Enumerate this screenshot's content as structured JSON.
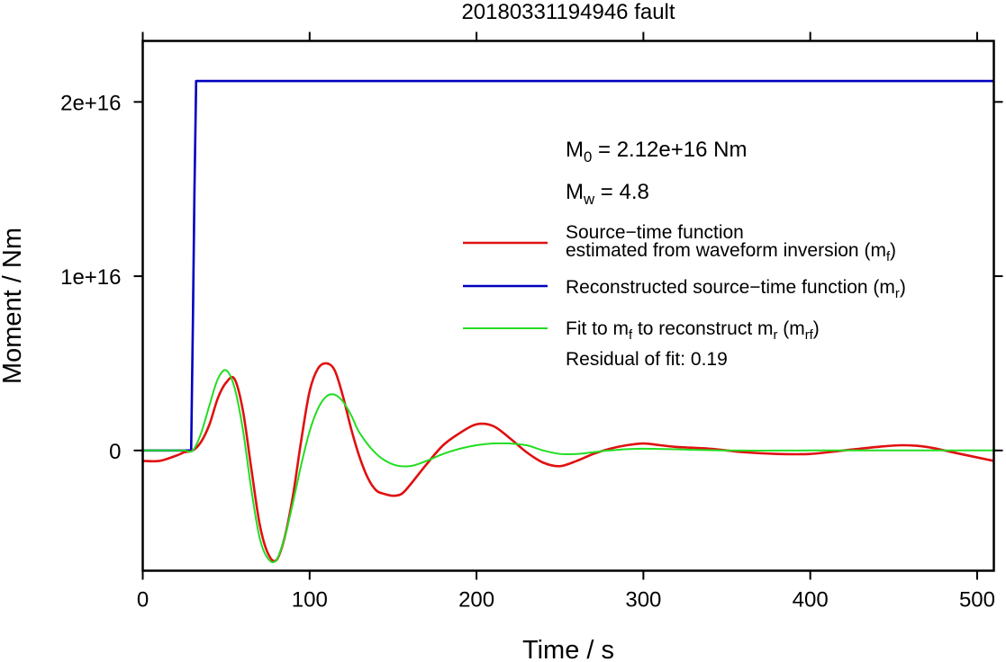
{
  "chart_data": {
    "type": "line",
    "title": "20180331194946 fault",
    "xlabel": "Time / s",
    "ylabel": "Moment / Nm",
    "xlim": [
      0,
      510
    ],
    "ylim": [
      -6900000000000000.0,
      2.35e+16
    ],
    "x_ticks": [
      0,
      100,
      200,
      300,
      400,
      500
    ],
    "x_tick_labels": [
      "0",
      "100",
      "200",
      "300",
      "400",
      "500"
    ],
    "y_ticks": [
      0,
      1e+16,
      2e+16
    ],
    "y_tick_labels": [
      "0",
      "1e+16",
      "2e+16"
    ],
    "grid": false,
    "legend_position": "right",
    "annotations": {
      "m0_label": "M",
      "m0_sub": "0",
      "m0_value": " = 2.12e+16 Nm",
      "mw_label": "M",
      "mw_sub": "w",
      "mw_value": " = 4.8",
      "residual": "Residual of fit: 0.19"
    },
    "legend": [
      {
        "line1": "Source−time function",
        "line2": "estimated from waveform inversion (m",
        "sub": "f",
        "tail": ")",
        "color": "#e01010"
      },
      {
        "line1": "Reconstructed source−time function (m",
        "sub": "r",
        "tail": ")",
        "color": "#0000c0"
      },
      {
        "pre": "Fit to m",
        "sub1": "f",
        "mid": " to reconstruct m",
        "sub2": "r",
        "mid2": " (m",
        "sub3": "rf",
        "tail": ")",
        "color": "#22dd22"
      }
    ],
    "series": [
      {
        "name": "Source−time function estimated from waveform inversion (mf)",
        "color": "#e01010",
        "x": [
          0,
          10,
          20,
          25,
          30,
          35,
          40,
          45,
          50,
          55,
          60,
          65,
          70,
          75,
          80,
          85,
          90,
          95,
          100,
          105,
          110,
          115,
          120,
          125,
          130,
          135,
          140,
          145,
          150,
          155,
          160,
          170,
          180,
          190,
          200,
          210,
          220,
          230,
          240,
          250,
          260,
          270,
          280,
          290,
          300,
          310,
          320,
          340,
          360,
          380,
          400,
          420,
          440,
          455,
          470,
          490,
          510
        ],
        "y": [
          -600000000000000.0,
          -600000000000000.0,
          -300000000000000.0,
          -100000000000000.0,
          0,
          500000000000000.0,
          1500000000000000.0,
          3000000000000000.0,
          3900000000000000.0,
          4100000000000000.0,
          2300000000000000.0,
          -1000000000000000.0,
          -4200000000000000.0,
          -5900000000000000.0,
          -6300000000000000.0,
          -5000000000000000.0,
          -2600000000000000.0,
          600000000000000.0,
          3400000000000000.0,
          4700000000000000.0,
          5000000000000000.0,
          4600000000000000.0,
          3100000000000000.0,
          1200000000000000.0,
          -400000000000000.0,
          -1600000000000000.0,
          -2300000000000000.0,
          -2500000000000000.0,
          -2600000000000000.0,
          -2500000000000000.0,
          -2000000000000000.0,
          -800000000000000.0,
          300000000000000.0,
          1000000000000000.0,
          1500000000000000.0,
          1400000000000000.0,
          700000000000000.0,
          -100000000000000.0,
          -700000000000000.0,
          -900000000000000.0,
          -600000000000000.0,
          -200000000000000.0,
          100000000000000.0,
          300000000000000.0,
          400000000000000.0,
          300000000000000.0,
          200000000000000.0,
          100000000000000.0,
          -100000000000000.0,
          -200000000000000.0,
          -200000000000000.0,
          0,
          200000000000000.0,
          300000000000000.0,
          200000000000000.0,
          -200000000000000.0,
          -600000000000000.0
        ]
      },
      {
        "name": "Reconstructed source−time function (mr)",
        "color": "#0000c0",
        "x": [
          0,
          29,
          30,
          31,
          32,
          510
        ],
        "y": [
          0,
          0,
          7000000000000000.0,
          1.5e+16,
          2.12e+16,
          2.12e+16
        ]
      },
      {
        "name": "Fit to mf to reconstruct mr (mrf)",
        "color": "#22dd22",
        "x": [
          0,
          20,
          25,
          30,
          35,
          40,
          45,
          50,
          55,
          60,
          65,
          70,
          75,
          80,
          85,
          90,
          95,
          100,
          105,
          110,
          115,
          120,
          125,
          130,
          140,
          150,
          160,
          170,
          180,
          190,
          200,
          210,
          220,
          230,
          240,
          250,
          260,
          270,
          280,
          300,
          350,
          400,
          450,
          510
        ],
        "y": [
          0,
          0,
          0,
          0,
          1000000000000000.0,
          2600000000000000.0,
          4100000000000000.0,
          4600000000000000.0,
          3600000000000000.0,
          1200000000000000.0,
          -2200000000000000.0,
          -5000000000000000.0,
          -6200000000000000.0,
          -6300000000000000.0,
          -5000000000000000.0,
          -3000000000000000.0,
          -800000000000000.0,
          1100000000000000.0,
          2400000000000000.0,
          3100000000000000.0,
          3200000000000000.0,
          2800000000000000.0,
          2000000000000000.0,
          1000000000000000.0,
          -200000000000000.0,
          -800000000000000.0,
          -900000000000000.0,
          -600000000000000.0,
          -200000000000000.0,
          100000000000000.0,
          300000000000000.0,
          400000000000000.0,
          400000000000000.0,
          300000000000000.0,
          0,
          -200000000000000.0,
          -200000000000000.0,
          -100000000000000.0,
          0,
          100000000000000.0,
          0,
          0,
          0,
          0
        ]
      }
    ]
  }
}
